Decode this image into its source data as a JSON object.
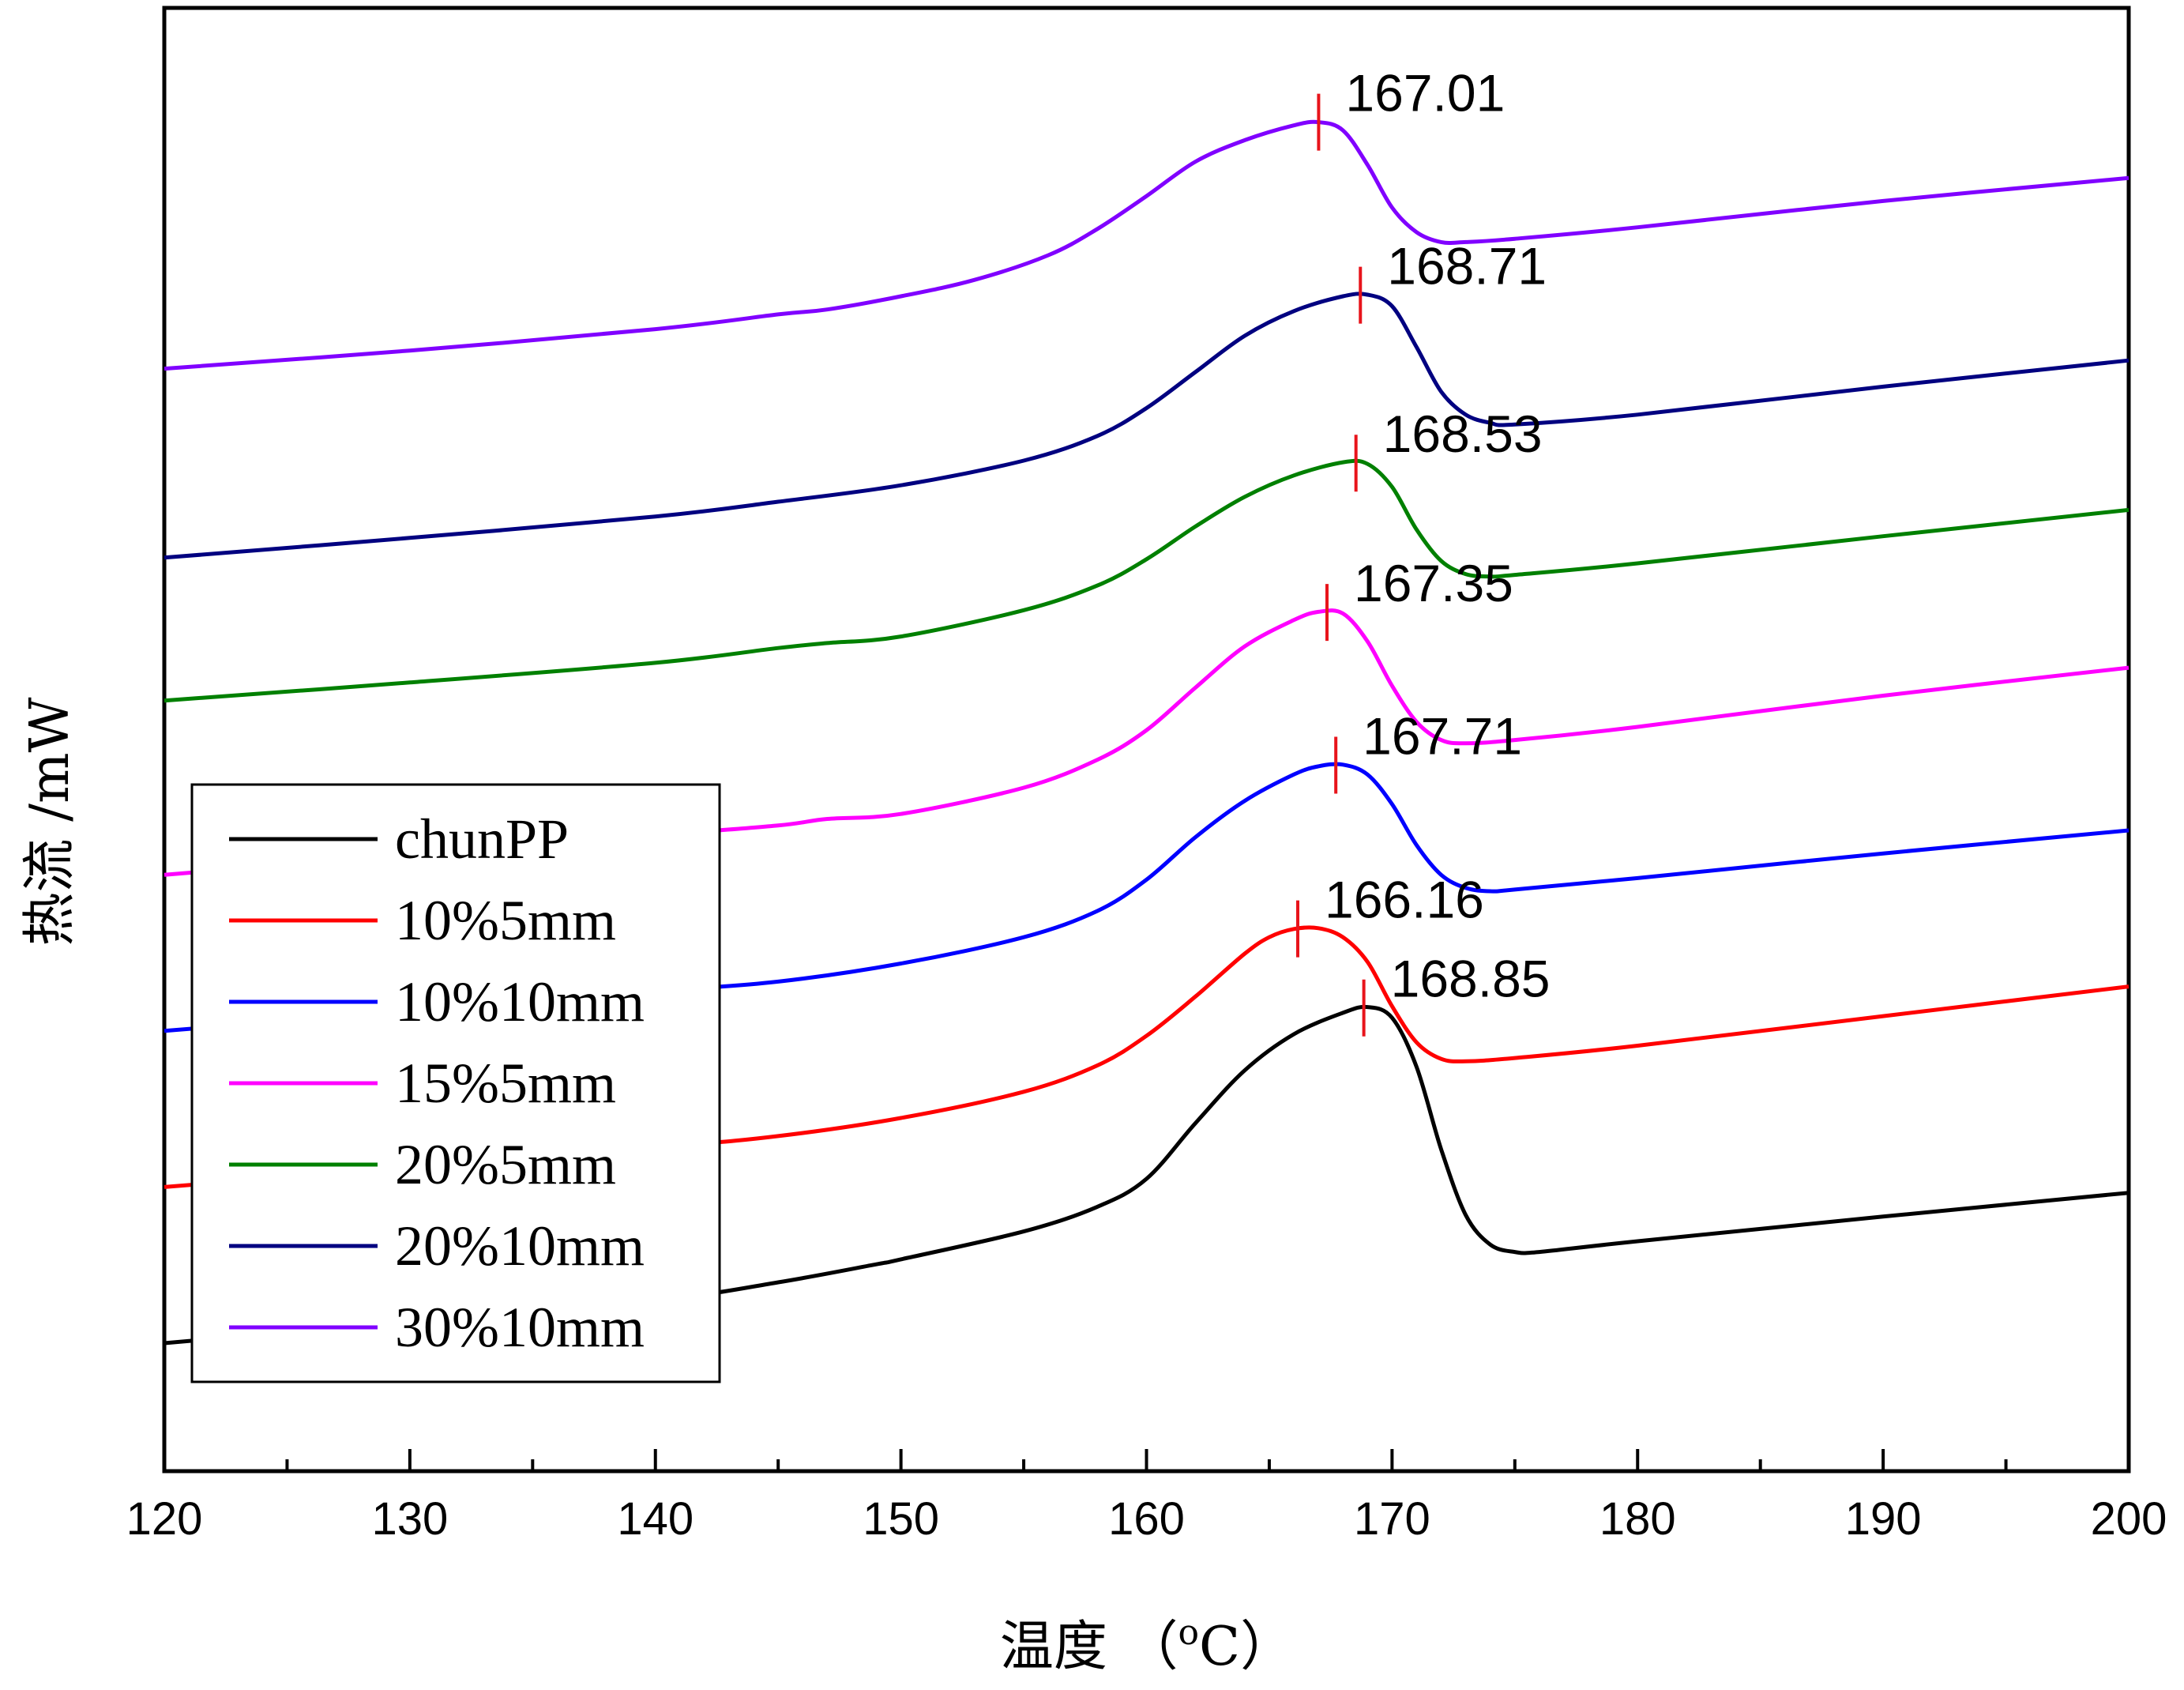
{
  "chart_data": {
    "type": "line",
    "title": "",
    "xlabel": "温度 （°C）",
    "xlabel_parts": {
      "main": "温度 （",
      "super": "o",
      "unit": "C）"
    },
    "ylabel": "热流 /mW",
    "xlim": [
      120,
      200
    ],
    "xticks": [
      120,
      130,
      140,
      150,
      160,
      170,
      180,
      190,
      200
    ],
    "xticks_minor": [
      125,
      135,
      145,
      155,
      165,
      175,
      185,
      195
    ],
    "yticks_shown": false,
    "grid": false,
    "legend_position": "bottom-left",
    "marker_color": "#e8141b",
    "series": [
      {
        "name": "chunPP",
        "color": "#000000",
        "peak_x": 168.85,
        "peak_label": "168.85",
        "points": [
          [
            120,
            5.0
          ],
          [
            130,
            7.6
          ],
          [
            140,
            10.2
          ],
          [
            145,
            12.4
          ],
          [
            149,
            14.6
          ],
          [
            150,
            15.2
          ],
          [
            155,
            18.6
          ],
          [
            158,
            21.6
          ],
          [
            160,
            25.0
          ],
          [
            162,
            31.8
          ],
          [
            164,
            38.2
          ],
          [
            166,
            42.6
          ],
          [
            168,
            45.2
          ],
          [
            169,
            45.9
          ],
          [
            170,
            44.6
          ],
          [
            171,
            38.6
          ],
          [
            172,
            28.6
          ],
          [
            173,
            20.6
          ],
          [
            174,
            17.0
          ],
          [
            175,
            16.1
          ],
          [
            176,
            16.1
          ],
          [
            180,
            17.4
          ],
          [
            190,
            20.4
          ],
          [
            200,
            23.3
          ]
        ]
      },
      {
        "name": "10%5mm",
        "color": "#ff0000",
        "peak_x": 166.16,
        "peak_label": "166.16",
        "points": [
          [
            120,
            24.0
          ],
          [
            130,
            26.4
          ],
          [
            140,
            28.8
          ],
          [
            145,
            30.2
          ],
          [
            150,
            32.4
          ],
          [
            155,
            35.6
          ],
          [
            158,
            38.8
          ],
          [
            160,
            42.4
          ],
          [
            162,
            47.2
          ],
          [
            164,
            52.4
          ],
          [
            165,
            54.4
          ],
          [
            166,
            55.4
          ],
          [
            167,
            55.5
          ],
          [
            168,
            54.4
          ],
          [
            169,
            51.4
          ],
          [
            170,
            46.0
          ],
          [
            171,
            41.6
          ],
          [
            172,
            39.6
          ],
          [
            173,
            39.3
          ],
          [
            175,
            39.7
          ],
          [
            180,
            41.2
          ],
          [
            190,
            44.8
          ],
          [
            200,
            48.4
          ]
        ]
      },
      {
        "name": "10%10mm",
        "color": "#0000ff",
        "peak_x": 167.71,
        "peak_label": "167.71",
        "points": [
          [
            120,
            43.0
          ],
          [
            130,
            45.4
          ],
          [
            140,
            47.8
          ],
          [
            145,
            49.0
          ],
          [
            150,
            51.2
          ],
          [
            155,
            54.4
          ],
          [
            158,
            57.6
          ],
          [
            160,
            61.4
          ],
          [
            162,
            66.6
          ],
          [
            164,
            71.0
          ],
          [
            166,
            74.2
          ],
          [
            167,
            75.2
          ],
          [
            168,
            75.4
          ],
          [
            169,
            74.2
          ],
          [
            170,
            70.6
          ],
          [
            171,
            65.6
          ],
          [
            172,
            62.0
          ],
          [
            173,
            60.4
          ],
          [
            174,
            60.0
          ],
          [
            175,
            60.2
          ],
          [
            180,
            61.6
          ],
          [
            190,
            64.6
          ],
          [
            200,
            67.4
          ]
        ]
      },
      {
        "name": "15%5mm",
        "color": "#ff00ff",
        "peak_x": 167.35,
        "peak_label": "167.35",
        "points": [
          [
            120,
            62.0
          ],
          [
            130,
            64.4
          ],
          [
            140,
            66.8
          ],
          [
            145,
            68.0
          ],
          [
            147,
            68.8
          ],
          [
            150,
            69.4
          ],
          [
            155,
            72.6
          ],
          [
            158,
            76.0
          ],
          [
            160,
            79.6
          ],
          [
            162,
            84.8
          ],
          [
            164,
            89.8
          ],
          [
            166,
            93.0
          ],
          [
            167,
            94.0
          ],
          [
            168,
            93.8
          ],
          [
            169,
            90.4
          ],
          [
            170,
            85.0
          ],
          [
            171,
            80.6
          ],
          [
            172,
            78.4
          ],
          [
            173,
            78.0
          ],
          [
            175,
            78.4
          ],
          [
            180,
            80.0
          ],
          [
            190,
            83.8
          ],
          [
            200,
            87.2
          ]
        ]
      },
      {
        "name": "20%5mm",
        "color": "#008000",
        "peak_x": 168.53,
        "peak_label": "168.53",
        "points": [
          [
            120,
            83.2
          ],
          [
            130,
            85.4
          ],
          [
            140,
            87.8
          ],
          [
            145,
            89.6
          ],
          [
            147,
            90.2
          ],
          [
            150,
            91.0
          ],
          [
            155,
            94.2
          ],
          [
            158,
            97.2
          ],
          [
            160,
            100.4
          ],
          [
            162,
            104.4
          ],
          [
            164,
            108.0
          ],
          [
            166,
            110.6
          ],
          [
            168,
            112.2
          ],
          [
            169,
            112.0
          ],
          [
            170,
            109.2
          ],
          [
            171,
            104.0
          ],
          [
            172,
            100.2
          ],
          [
            173,
            98.6
          ],
          [
            174,
            98.3
          ],
          [
            175,
            98.5
          ],
          [
            180,
            99.9
          ],
          [
            190,
            103.2
          ],
          [
            200,
            106.4
          ]
        ]
      },
      {
        "name": "20%10mm",
        "color": "#000080",
        "peak_x": 168.71,
        "peak_label": "168.71",
        "points": [
          [
            120,
            100.6
          ],
          [
            130,
            103.0
          ],
          [
            140,
            105.6
          ],
          [
            145,
            107.4
          ],
          [
            150,
            109.4
          ],
          [
            155,
            112.4
          ],
          [
            158,
            115.4
          ],
          [
            160,
            118.8
          ],
          [
            162,
            123.2
          ],
          [
            164,
            127.6
          ],
          [
            166,
            130.6
          ],
          [
            168,
            132.4
          ],
          [
            169,
            132.6
          ],
          [
            170,
            131.2
          ],
          [
            171,
            126.2
          ],
          [
            172,
            120.8
          ],
          [
            173,
            118.0
          ],
          [
            174,
            117.0
          ],
          [
            175,
            116.8
          ],
          [
            180,
            118.0
          ],
          [
            190,
            121.4
          ],
          [
            200,
            124.6
          ]
        ]
      },
      {
        "name": "30%10mm",
        "color": "#8000ff",
        "peak_x": 167.01,
        "peak_label": "167.01",
        "points": [
          [
            120,
            123.6
          ],
          [
            130,
            125.8
          ],
          [
            140,
            128.4
          ],
          [
            145,
            130.2
          ],
          [
            147,
            130.8
          ],
          [
            150,
            132.4
          ],
          [
            153,
            134.4
          ],
          [
            156,
            137.4
          ],
          [
            158,
            140.6
          ],
          [
            160,
            144.6
          ],
          [
            162,
            148.8
          ],
          [
            164,
            151.4
          ],
          [
            166,
            153.2
          ],
          [
            167,
            153.6
          ],
          [
            168,
            152.6
          ],
          [
            169,
            148.4
          ],
          [
            170,
            143.2
          ],
          [
            171,
            140.2
          ],
          [
            172,
            139.0
          ],
          [
            173,
            139.0
          ],
          [
            175,
            139.4
          ],
          [
            180,
            140.8
          ],
          [
            190,
            144.0
          ],
          [
            200,
            146.8
          ]
        ]
      }
    ]
  }
}
